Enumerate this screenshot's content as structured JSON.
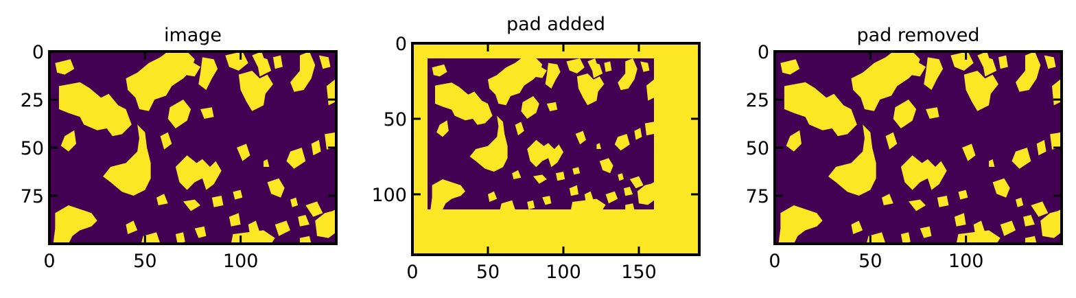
{
  "figure": {
    "colormap": "viridis",
    "colors": {
      "low": "#440154",
      "high": "#fde725",
      "frame": "#000000"
    }
  },
  "chart_data": [
    {
      "type": "heatmap",
      "title": "image",
      "data_shape": [
        100,
        150
      ],
      "xlim": [
        0,
        150
      ],
      "ylim": [
        100,
        0
      ],
      "xticks": [
        0,
        50,
        100
      ],
      "yticks": [
        0,
        25,
        50,
        75
      ],
      "values": "binary field (0/1) of irregular blobs",
      "grid": false
    },
    {
      "type": "heatmap",
      "title": "pad added",
      "data_shape": [
        140,
        190
      ],
      "xlim": [
        0,
        190
      ],
      "ylim": [
        140,
        0
      ],
      "xticks": [
        0,
        50,
        100,
        150
      ],
      "yticks": [
        0,
        50,
        100
      ],
      "values": "same binary field padded with value 1: 10 left, 10 top, 30 bottom, 30 right",
      "grid": false
    },
    {
      "type": "heatmap",
      "title": "pad removed",
      "data_shape": [
        100,
        150
      ],
      "xlim": [
        0,
        150
      ],
      "ylim": [
        100,
        0
      ],
      "xticks": [
        0,
        50,
        100
      ],
      "yticks": [
        0,
        25,
        50,
        75
      ],
      "values": "binary field (0/1) identical to the original image",
      "grid": false
    }
  ]
}
